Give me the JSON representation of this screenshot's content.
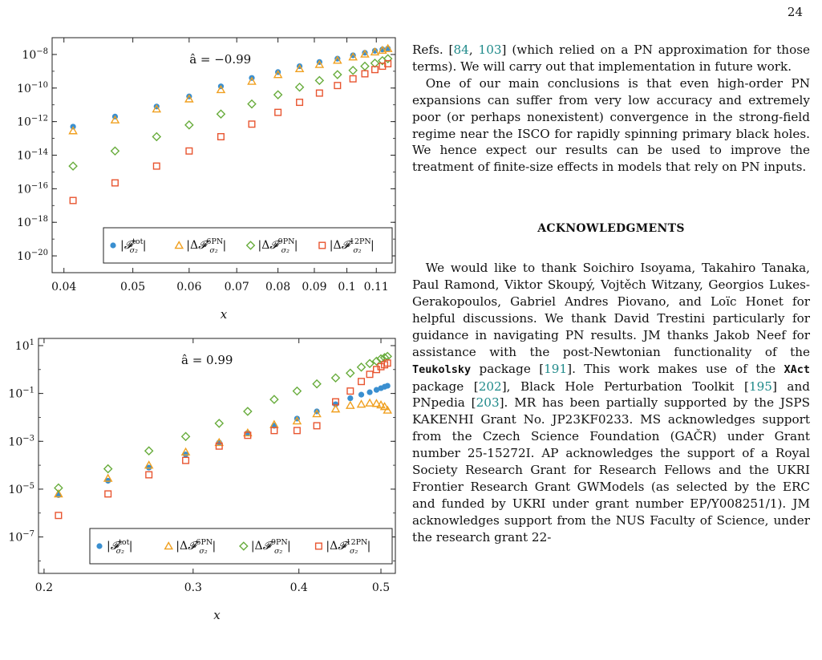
{
  "page_number": "24",
  "colors": {
    "tot": "#3a8fd0",
    "pn6": "#f0a020",
    "pn9": "#68ac3c",
    "pn12": "#e85530"
  },
  "legend_labels": {
    "tot": "|𝓕^tot_σ2|",
    "pn6": "|Δ𝓕^6PN_σ2|",
    "pn9": "|Δ𝓕^9PN_σ2|",
    "pn12": "|Δ𝓕^12PN_σ2|"
  },
  "chart_data": [
    {
      "type": "scatter",
      "annotation": "â = −0.99",
      "xlabel": "x",
      "xscale": "log",
      "yscale": "log",
      "xlim": [
        0.0385,
        0.117
      ],
      "ylim": [
        1e-21,
        1e-07
      ],
      "xticks": [
        {
          "v": 0.04,
          "label": "0.04"
        },
        {
          "v": 0.05,
          "label": "0.05"
        },
        {
          "v": 0.06,
          "label": "0.06"
        },
        {
          "v": 0.07,
          "label": "0.07"
        },
        {
          "v": 0.08,
          "label": "0.08"
        },
        {
          "v": 0.09,
          "label": "0.09"
        },
        {
          "v": 0.1,
          "label": "0.1"
        },
        {
          "v": 0.11,
          "label": "0.11"
        }
      ],
      "yticks": [
        {
          "exp": -8,
          "label": "10−8"
        },
        {
          "exp": -10,
          "label": "10−10"
        },
        {
          "exp": -12,
          "label": "10−12"
        },
        {
          "exp": -14,
          "label": "10−14"
        },
        {
          "exp": -16,
          "label": "10−16"
        },
        {
          "exp": -18,
          "label": "10−18"
        },
        {
          "exp": -20,
          "label": "10−20"
        }
      ],
      "legend_position": "bottom",
      "series": [
        {
          "key": "tot",
          "x": [
            0.0412,
            0.0472,
            0.054,
            0.06,
            0.0665,
            0.0735,
            0.08,
            0.0858,
            0.0915,
            0.097,
            0.102,
            0.106,
            0.1095,
            0.1122,
            0.1142
          ],
          "log10y": [
            -12.3,
            -11.7,
            -11.1,
            -10.5,
            -9.9,
            -9.4,
            -9.05,
            -8.7,
            -8.45,
            -8.25,
            -8.05,
            -7.9,
            -7.78,
            -7.7,
            -7.65
          ]
        },
        {
          "key": "pn6",
          "x": [
            0.0412,
            0.0472,
            0.054,
            0.06,
            0.0665,
            0.0735,
            0.08,
            0.0858,
            0.0915,
            0.097,
            0.102,
            0.106,
            0.1095,
            0.1122,
            0.1142
          ],
          "log10y": [
            -12.55,
            -11.9,
            -11.25,
            -10.65,
            -10.1,
            -9.6,
            -9.2,
            -8.85,
            -8.6,
            -8.35,
            -8.15,
            -7.98,
            -7.85,
            -7.75,
            -7.65
          ]
        },
        {
          "key": "pn9",
          "x": [
            0.0412,
            0.0472,
            0.054,
            0.06,
            0.0665,
            0.0735,
            0.08,
            0.0858,
            0.0915,
            0.097,
            0.102,
            0.106,
            0.1095,
            0.1122,
            0.1142
          ],
          "log10y": [
            -14.65,
            -13.75,
            -12.9,
            -12.2,
            -11.55,
            -10.95,
            -10.4,
            -9.95,
            -9.55,
            -9.2,
            -8.95,
            -8.7,
            -8.52,
            -8.37,
            -8.25
          ]
        },
        {
          "key": "pn12",
          "x": [
            0.0412,
            0.0472,
            0.054,
            0.06,
            0.0665,
            0.0735,
            0.08,
            0.0858,
            0.0915,
            0.097,
            0.102,
            0.106,
            0.1095,
            0.1122,
            0.1142
          ],
          "log10y": [
            -16.7,
            -15.65,
            -14.65,
            -13.75,
            -12.9,
            -12.15,
            -11.45,
            -10.85,
            -10.3,
            -9.85,
            -9.45,
            -9.15,
            -8.9,
            -8.7,
            -8.55
          ]
        }
      ]
    },
    {
      "type": "scatter",
      "annotation": "â = 0.99",
      "xlabel": "x",
      "xscale": "log",
      "yscale": "log",
      "xlim": [
        0.197,
        0.52
      ],
      "ylim": [
        3e-09,
        20
      ],
      "xticks": [
        {
          "v": 0.2,
          "label": "0.2"
        },
        {
          "v": 0.3,
          "label": "0.3"
        },
        {
          "v": 0.4,
          "label": "0.4"
        },
        {
          "v": 0.5,
          "label": "0.5"
        }
      ],
      "yticks": [
        {
          "exp": 1,
          "label": "101"
        },
        {
          "exp": -1,
          "label": "10−1"
        },
        {
          "exp": -3,
          "label": "10−3"
        },
        {
          "exp": -5,
          "label": "10−5"
        },
        {
          "exp": -7,
          "label": "10−7"
        }
      ],
      "legend_position": "bottom",
      "series": [
        {
          "key": "tot",
          "x": [
            0.208,
            0.238,
            0.266,
            0.294,
            0.322,
            0.348,
            0.374,
            0.398,
            0.42,
            0.442,
            0.46,
            0.474,
            0.485,
            0.494,
            0.5,
            0.505,
            0.509
          ],
          "log10y": [
            -5.25,
            -4.65,
            -4.1,
            -3.55,
            -3.05,
            -2.65,
            -2.35,
            -2.05,
            -1.75,
            -1.45,
            -1.2,
            -1.05,
            -0.95,
            -0.85,
            -0.78,
            -0.72,
            -0.68
          ]
        },
        {
          "key": "pn6",
          "x": [
            0.208,
            0.238,
            0.266,
            0.294,
            0.322,
            0.348,
            0.374,
            0.398,
            0.42,
            0.442,
            0.46,
            0.474,
            0.485,
            0.494,
            0.5,
            0.505,
            0.509
          ],
          "log10y": [
            -5.2,
            -4.55,
            -4.0,
            -3.45,
            -3.05,
            -2.65,
            -2.3,
            -2.15,
            -1.85,
            -1.65,
            -1.5,
            -1.45,
            -1.4,
            -1.42,
            -1.48,
            -1.55,
            -1.7
          ]
        },
        {
          "key": "pn9",
          "x": [
            0.208,
            0.238,
            0.266,
            0.294,
            0.322,
            0.348,
            0.374,
            0.398,
            0.42,
            0.442,
            0.46,
            0.474,
            0.485,
            0.494,
            0.5,
            0.505,
            0.509
          ],
          "log10y": [
            -4.95,
            -4.15,
            -3.4,
            -2.8,
            -2.25,
            -1.75,
            -1.25,
            -0.9,
            -0.6,
            -0.35,
            -0.15,
            0.1,
            0.25,
            0.35,
            0.45,
            0.5,
            0.55
          ]
        },
        {
          "key": "pn12",
          "x": [
            0.208,
            0.238,
            0.266,
            0.294,
            0.322,
            0.348,
            0.374,
            0.398,
            0.42,
            0.442,
            0.46,
            0.474,
            0.485,
            0.494,
            0.5,
            0.505,
            0.509
          ],
          "log10y": [
            -6.1,
            -5.2,
            -4.4,
            -3.8,
            -3.2,
            -2.75,
            -2.55,
            -2.55,
            -2.35,
            -1.35,
            -0.9,
            -0.5,
            -0.2,
            0.0,
            0.12,
            0.2,
            0.27
          ]
        }
      ]
    }
  ],
  "text": {
    "p1_a": "Refs. [",
    "p1_ref1": "84",
    "p1_b": ", ",
    "p1_ref2": "103",
    "p1_c": "] (which relied on a PN approximation for those terms). We will carry out that implementation in future work.",
    "p2": "One of our main conclusions is that even high-order PN expansions can suffer from very low accuracy and extremely poor (or perhaps nonexistent) convergence in the strong-field regime near the ISCO for rapidly spinning primary black holes. We hence expect our results can be used to improve the treatment of finite-size effects in models that rely on PN inputs.",
    "heading": "ACKNOWLEDGMENTS",
    "ack_1": "We would like to thank Soichiro Isoyama, Takahiro Tanaka, Paul Ramond, Viktor Skoupý, Vojtěch Witzany, Georgios Lukes-Gerakopoulos, Gabriel Andres Piovano, and Loïc Honet for helpful discussions. We thank David Trestini particularly for guidance in navigating PN results. JM thanks Jakob Neef for assistance with the post-Newtonian functionality of the ",
    "ack_teuk": "Teukolsky",
    "ack_2": " package [",
    "ack_ref191": "191",
    "ack_3": "]. This work makes use of the ",
    "ack_xact": "XAct",
    "ack_4": " package [",
    "ack_ref202": "202",
    "ack_5": "], Black Hole Perturbation Toolkit [",
    "ack_ref195": "195",
    "ack_6": "] and PNpedia [",
    "ack_ref203": "203",
    "ack_7": "]. MR has been partially supported by the JSPS KAKENHI Grant No. JP23KF0233. MS acknowledges support from the Czech Science Foundation (GAČR) under Grant number 25-15272I. AP acknowledges the support of a Royal Society Research Grant for Research Fellows and the UKRI Frontier Research Grant GWModels (as selected by the ERC and funded by UKRI under grant number EP/Y008251/1). JM acknowledges support from the NUS Faculty of Science, under the research grant 22-"
  }
}
